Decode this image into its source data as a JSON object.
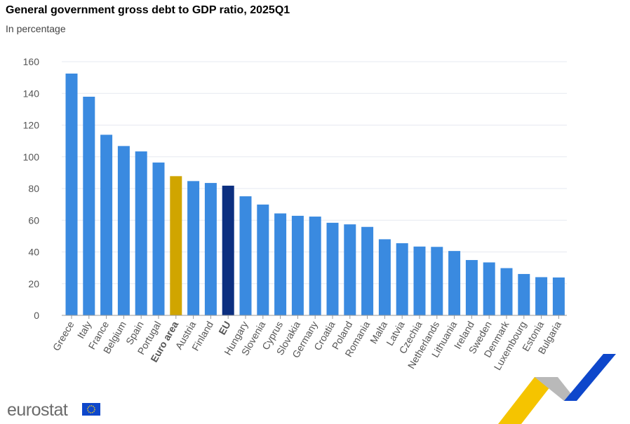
{
  "title": "General government gross debt to GDP ratio, 2025Q1",
  "subtitle": "In percentage",
  "logo": "eurostat",
  "colors": {
    "country": "#3a8ae0",
    "euro_area": "#d0a500",
    "eu": "#0c2f80",
    "grid": "#e6e9f0"
  },
  "chart_data": {
    "type": "bar",
    "title": "General government gross debt to GDP ratio, 2025Q1",
    "subtitle": "In percentage",
    "xlabel": "",
    "ylabel": "",
    "ylim": [
      0,
      160
    ],
    "yticks": [
      0,
      20,
      40,
      60,
      80,
      100,
      120,
      140,
      160
    ],
    "grid": true,
    "legend": "none",
    "categories": [
      "Greece",
      "Italy",
      "France",
      "Belgium",
      "Spain",
      "Portugal",
      "Euro area",
      "Austria",
      "Finland",
      "EU",
      "Hungary",
      "Slovenia",
      "Cyprus",
      "Slovakia",
      "Germany",
      "Croatia",
      "Poland",
      "Romania",
      "Malta",
      "Latvia",
      "Czechia",
      "Netherlands",
      "Lithuania",
      "Ireland",
      "Sweden",
      "Denmark",
      "Luxembourg",
      "Estonia",
      "Bulgaria"
    ],
    "values": [
      152.5,
      137.9,
      113.9,
      106.8,
      103.4,
      96.4,
      87.8,
      84.7,
      83.5,
      81.8,
      75.1,
      69.9,
      64.3,
      62.8,
      62.3,
      58.4,
      57.4,
      55.8,
      48.0,
      45.5,
      43.4,
      43.2,
      40.6,
      34.9,
      33.4,
      29.8,
      26.1,
      24.1,
      23.9
    ],
    "highlight": {
      "Euro area": "euro_area",
      "EU": "eu"
    }
  }
}
